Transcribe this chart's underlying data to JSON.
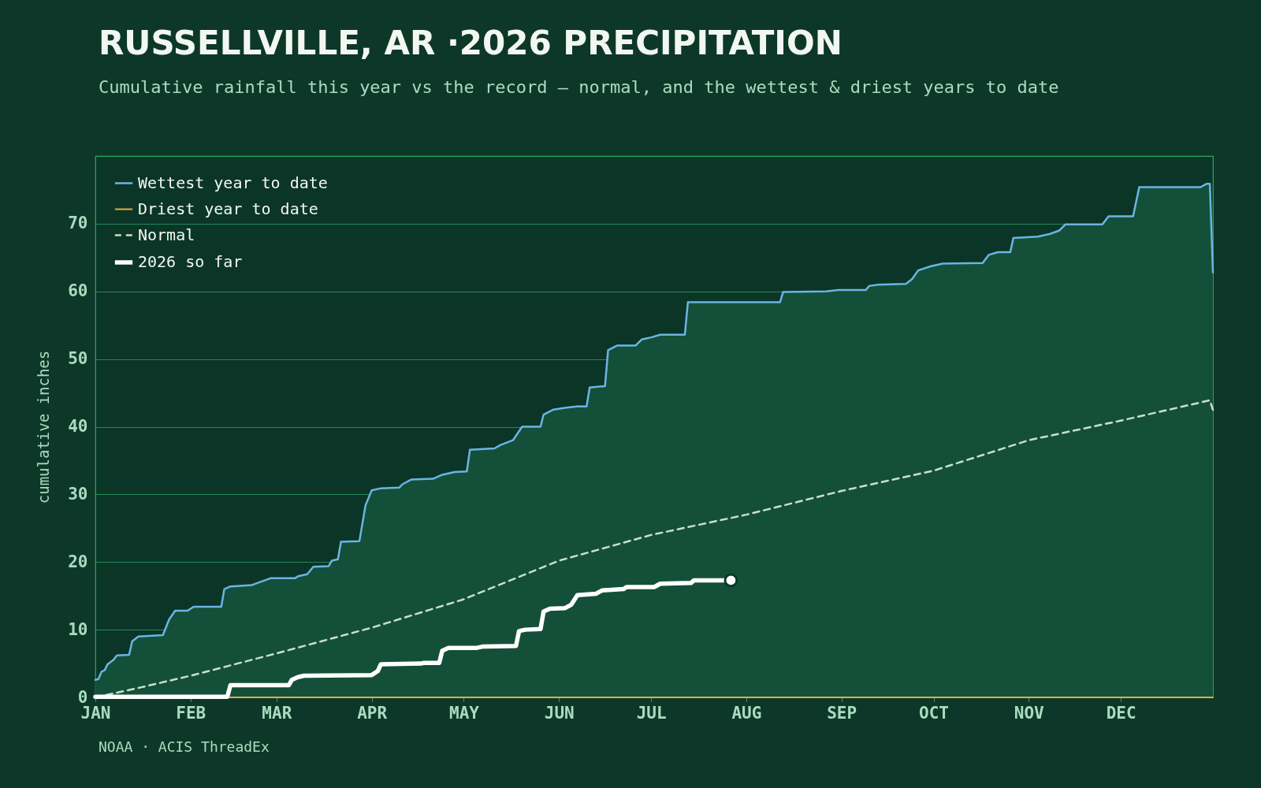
{
  "chart_data": {
    "type": "line",
    "title": "RUSSELLVILLE, AR ·2026 PRECIPITATION",
    "subtitle": "Cumulative rainfall this year vs the record — normal, and the wettest & driest years to date",
    "ylabel": "cumulative inches",
    "annotations": [
      "NOAA · ACIS ThreadEx"
    ],
    "xlim": [
      "2026-01-01",
      "2026-12-31"
    ],
    "xticks": [
      {
        "value": "2026-01-01",
        "label": "JAN"
      },
      {
        "value": "2026-02-01",
        "label": "FEB"
      },
      {
        "value": "2026-03-01",
        "label": "MAR"
      },
      {
        "value": "2026-04-01",
        "label": "APR"
      },
      {
        "value": "2026-05-01",
        "label": "MAY"
      },
      {
        "value": "2026-06-01",
        "label": "JUN"
      },
      {
        "value": "2026-07-01",
        "label": "JUL"
      },
      {
        "value": "2026-08-01",
        "label": "AUG"
      },
      {
        "value": "2026-09-01",
        "label": "SEP"
      },
      {
        "value": "2026-10-01",
        "label": "OCT"
      },
      {
        "value": "2026-11-01",
        "label": "NOV"
      },
      {
        "value": "2026-12-01",
        "label": "DEC"
      }
    ],
    "ylim": [
      0,
      80
    ],
    "yticks": [
      0,
      10,
      20,
      30,
      40,
      50,
      60,
      70
    ],
    "grid": "y",
    "legend": "top left",
    "series": [
      {
        "name": "Wettest year to date",
        "type": "area",
        "color": "#6cb4e4",
        "x": [
          "2026-01-01",
          "2026-01-02",
          "2026-01-03",
          "2026-01-04",
          "2026-01-05",
          "2026-01-07",
          "2026-01-08",
          "2026-01-12",
          "2026-01-13",
          "2026-01-15",
          "2026-01-23",
          "2026-01-25",
          "2026-01-27",
          "2026-01-31",
          "2026-02-02",
          "2026-02-11",
          "2026-02-12",
          "2026-02-14",
          "2026-02-21",
          "2026-02-27",
          "2026-03-07",
          "2026-03-08",
          "2026-03-11",
          "2026-03-13",
          "2026-03-18",
          "2026-03-19",
          "2026-03-21",
          "2026-03-22",
          "2026-03-28",
          "2026-03-30",
          "2026-04-01",
          "2026-04-04",
          "2026-04-10",
          "2026-04-11",
          "2026-04-14",
          "2026-04-21",
          "2026-04-24",
          "2026-04-28",
          "2026-05-02",
          "2026-05-03",
          "2026-05-11",
          "2026-05-13",
          "2026-05-17",
          "2026-05-20",
          "2026-05-26",
          "2026-05-27",
          "2026-05-30",
          "2026-06-03",
          "2026-06-07",
          "2026-06-10",
          "2026-06-11",
          "2026-06-16",
          "2026-06-17",
          "2026-06-20",
          "2026-06-26",
          "2026-06-28",
          "2026-07-01",
          "2026-07-04",
          "2026-07-12",
          "2026-07-13",
          "2026-08-12",
          "2026-08-13",
          "2026-08-27",
          "2026-08-31",
          "2026-09-09",
          "2026-09-10",
          "2026-09-13",
          "2026-09-22",
          "2026-09-24",
          "2026-09-26",
          "2026-09-30",
          "2026-10-04",
          "2026-10-17",
          "2026-10-19",
          "2026-10-22",
          "2026-10-26",
          "2026-10-27",
          "2026-11-04",
          "2026-11-08",
          "2026-11-11",
          "2026-11-13",
          "2026-11-25",
          "2026-11-27",
          "2026-12-05",
          "2026-12-07",
          "2026-12-27",
          "2026-12-29",
          "2026-12-30",
          "2026-12-31"
        ],
        "values": [
          2.6,
          2.7,
          3.8,
          4.0,
          4.9,
          5.6,
          6.2,
          6.3,
          8.3,
          9.0,
          9.2,
          11.5,
          12.8,
          12.8,
          13.4,
          13.4,
          16.0,
          16.4,
          16.6,
          17.6,
          17.6,
          17.9,
          18.2,
          19.3,
          19.4,
          20.2,
          20.4,
          23.0,
          23.1,
          28.4,
          30.6,
          30.9,
          31.0,
          31.5,
          32.2,
          32.3,
          32.9,
          33.3,
          33.4,
          36.6,
          36.8,
          37.3,
          38.0,
          40.0,
          40.0,
          41.8,
          42.5,
          42.8,
          43.0,
          43.0,
          45.8,
          46.0,
          51.3,
          52.0,
          52.0,
          52.9,
          53.2,
          53.6,
          53.6,
          58.4,
          58.4,
          59.9,
          60.0,
          60.2,
          60.2,
          60.8,
          61.0,
          61.1,
          61.8,
          63.1,
          63.7,
          64.1,
          64.2,
          65.4,
          65.8,
          65.8,
          67.9,
          68.1,
          68.5,
          69.0,
          69.9,
          69.9,
          71.1,
          71.1,
          75.4,
          75.4,
          75.9,
          75.9,
          62.8
        ]
      },
      {
        "name": "Driest year to date",
        "color": "#e0b040",
        "x": [
          "2026-01-01",
          "2026-12-31"
        ],
        "values": [
          0,
          0
        ]
      },
      {
        "name": "Normal",
        "color": "#c8e0cc",
        "line_style": "dashed",
        "x": [
          "2026-01-01",
          "2026-01-16",
          "2026-02-01",
          "2026-03-01",
          "2026-04-01",
          "2026-05-01",
          "2026-06-01",
          "2026-07-01",
          "2026-08-01",
          "2026-09-01",
          "2026-10-01",
          "2026-11-01",
          "2026-12-01",
          "2026-12-30",
          "2026-12-31"
        ],
        "values": [
          0,
          1.5,
          3.2,
          6.5,
          10.3,
          14.5,
          20.2,
          24.0,
          27.0,
          30.5,
          33.5,
          38.0,
          40.9,
          43.9,
          42.5
        ]
      },
      {
        "name": "2026 so far",
        "color": "#ffffff",
        "x": [
          "2026-01-01",
          "2026-02-13",
          "2026-02-14",
          "2026-03-05",
          "2026-03-06",
          "2026-03-08",
          "2026-03-10",
          "2026-04-01",
          "2026-04-03",
          "2026-04-04",
          "2026-04-17",
          "2026-04-18",
          "2026-04-23",
          "2026-04-24",
          "2026-04-26",
          "2026-05-05",
          "2026-05-07",
          "2026-05-18",
          "2026-05-19",
          "2026-05-21",
          "2026-05-26",
          "2026-05-27",
          "2026-05-29",
          "2026-06-03",
          "2026-06-05",
          "2026-06-07",
          "2026-06-13",
          "2026-06-15",
          "2026-06-22",
          "2026-06-23",
          "2026-07-02",
          "2026-07-04",
          "2026-07-14",
          "2026-07-15",
          "2026-07-27"
        ],
        "values": [
          0.1,
          0.1,
          1.8,
          1.8,
          2.6,
          3.0,
          3.2,
          3.3,
          3.9,
          4.9,
          5.0,
          5.1,
          5.1,
          6.9,
          7.3,
          7.3,
          7.5,
          7.6,
          9.8,
          10.0,
          10.1,
          12.7,
          13.1,
          13.2,
          13.7,
          15.1,
          15.3,
          15.8,
          16.0,
          16.3,
          16.3,
          16.8,
          16.9,
          17.3,
          17.3
        ]
      },
      {
        "type": "scatter",
        "color": "#ffffff",
        "x": [
          "2026-07-27"
        ],
        "values": [
          17.3
        ]
      }
    ]
  }
}
